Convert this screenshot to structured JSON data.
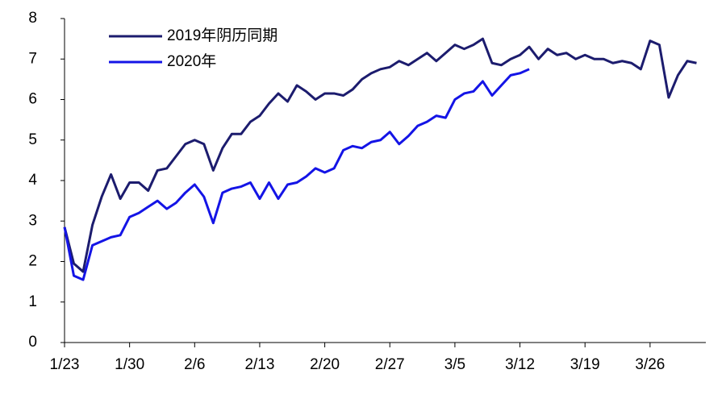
{
  "chart_data": {
    "type": "line",
    "x": [
      0,
      1,
      2,
      3,
      4,
      5,
      6,
      7,
      8,
      9,
      10,
      11,
      12,
      13,
      14,
      15,
      16,
      17,
      18,
      19,
      20,
      21,
      22,
      23,
      24,
      25,
      26,
      27,
      28,
      29,
      30,
      31,
      32,
      33,
      34,
      35,
      36,
      37,
      38,
      39,
      40,
      41,
      42,
      43,
      44,
      45,
      46,
      47,
      48,
      49,
      50,
      51,
      52,
      53,
      54,
      55,
      56,
      57,
      58,
      59,
      60,
      61,
      62,
      63,
      64,
      65,
      66,
      67,
      68
    ],
    "series": [
      {
        "name": "2019年阴历同期",
        "color": "#1c1c6e",
        "values": [
          2.85,
          1.95,
          1.75,
          2.9,
          3.6,
          4.15,
          3.55,
          3.95,
          3.95,
          3.75,
          4.25,
          4.3,
          4.6,
          4.9,
          5.0,
          4.9,
          4.25,
          4.8,
          5.15,
          5.15,
          5.45,
          5.6,
          5.9,
          6.15,
          5.95,
          6.35,
          6.2,
          6.0,
          6.15,
          6.15,
          6.1,
          6.25,
          6.5,
          6.65,
          6.75,
          6.8,
          6.95,
          6.85,
          7.0,
          7.15,
          6.95,
          7.15,
          7.35,
          7.25,
          7.35,
          7.5,
          6.9,
          6.85,
          7.0,
          7.1,
          7.3,
          7.0,
          7.25,
          7.1,
          7.15,
          7.0,
          7.1,
          7.0,
          7.0,
          6.9,
          6.95,
          6.9,
          6.75,
          7.45,
          7.35,
          6.05,
          6.6,
          6.95,
          6.9
        ]
      },
      {
        "name": "2020年",
        "color": "#1414e6",
        "values": [
          2.85,
          1.65,
          1.55,
          2.4,
          2.5,
          2.6,
          2.65,
          3.1,
          3.2,
          3.35,
          3.5,
          3.3,
          3.45,
          3.7,
          3.9,
          3.6,
          2.95,
          3.7,
          3.8,
          3.85,
          3.95,
          3.55,
          3.95,
          3.55,
          3.9,
          3.95,
          4.1,
          4.3,
          4.2,
          4.3,
          4.75,
          4.85,
          4.8,
          4.95,
          5.0,
          5.2,
          4.9,
          5.1,
          5.35,
          5.45,
          5.6,
          5.55,
          6.0,
          6.15,
          6.2,
          6.45,
          6.1,
          6.35,
          6.6,
          6.65,
          6.75,
          null,
          null,
          null,
          null,
          null,
          null,
          null,
          null,
          null,
          null,
          null,
          null,
          null,
          null,
          null,
          null,
          null,
          null
        ]
      }
    ],
    "xlim": [
      0,
      69
    ],
    "xticks": [
      {
        "value": 0,
        "label": "1/23"
      },
      {
        "value": 7,
        "label": "1/30"
      },
      {
        "value": 14,
        "label": "2/6"
      },
      {
        "value": 21,
        "label": "2/13"
      },
      {
        "value": 28,
        "label": "2/20"
      },
      {
        "value": 35,
        "label": "2/27"
      },
      {
        "value": 42,
        "label": "3/5"
      },
      {
        "value": 49,
        "label": "3/12"
      },
      {
        "value": 56,
        "label": "3/19"
      },
      {
        "value": 63,
        "label": "3/26"
      }
    ],
    "ylim": [
      0,
      8
    ],
    "yticks": [
      0,
      1,
      2,
      3,
      4,
      5,
      6,
      7,
      8
    ],
    "legend": "upper left"
  }
}
